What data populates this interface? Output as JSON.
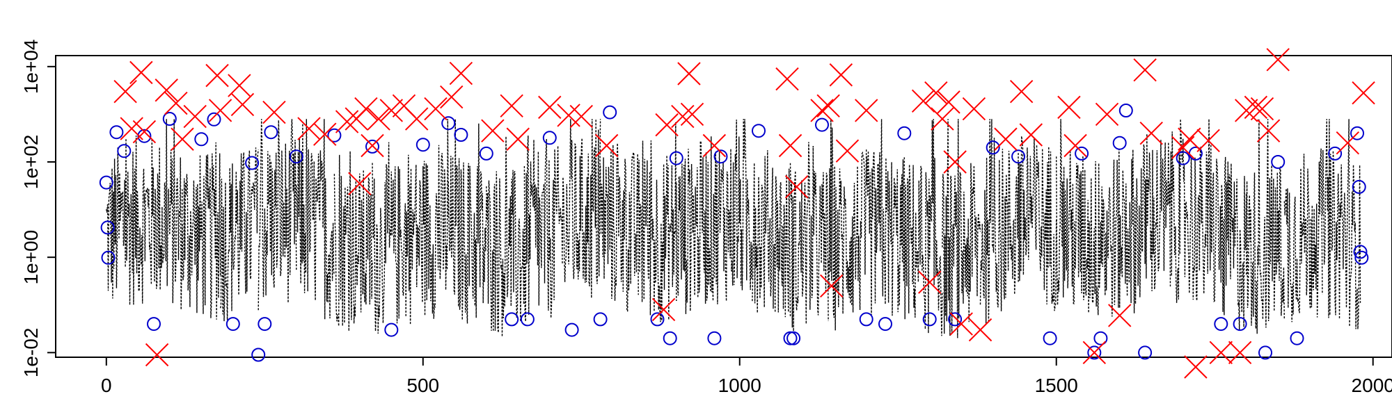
{
  "chart_data": {
    "type": "scatter",
    "title": "",
    "xlabel": "",
    "ylabel": "",
    "y_scale": "log10",
    "xlim": [
      -80,
      2030
    ],
    "ylim": [
      0.008,
      17000
    ],
    "x_ticks": [
      0,
      500,
      1000,
      1500,
      2000
    ],
    "x_tick_labels": [
      "0",
      "500",
      "1000",
      "1500",
      "2000"
    ],
    "y_ticks": [
      0.01,
      1,
      100,
      10000
    ],
    "y_tick_labels": [
      "1e-02",
      "1e+00",
      "1e+02",
      "1e+04"
    ],
    "grid": false,
    "legend": "none",
    "colors": {
      "line": "#000000",
      "circle": "#0000cc",
      "cross": "#ff0000"
    },
    "series": [
      {
        "style": "dotted-line",
        "description_values": "x = 0..1980, y between ~0.01 and ~800 (dense)"
      },
      {
        "style": "open-circle",
        "points": [
          [
            0,
            37
          ],
          [
            2,
            4.2
          ],
          [
            3,
            0.98
          ],
          [
            16,
            420
          ],
          [
            28,
            170
          ],
          [
            60,
            350
          ],
          [
            75,
            0.04
          ],
          [
            100,
            800
          ],
          [
            150,
            300
          ],
          [
            170,
            780
          ],
          [
            200,
            0.04
          ],
          [
            230,
            95
          ],
          [
            240,
            0.009
          ],
          [
            250,
            0.04
          ],
          [
            260,
            420
          ],
          [
            300,
            130
          ],
          [
            360,
            360
          ],
          [
            420,
            210
          ],
          [
            450,
            0.03
          ],
          [
            500,
            230
          ],
          [
            540,
            650
          ],
          [
            560,
            370
          ],
          [
            600,
            150
          ],
          [
            640,
            0.05
          ],
          [
            665,
            0.05
          ],
          [
            700,
            320
          ],
          [
            735,
            0.03
          ],
          [
            780,
            0.05
          ],
          [
            795,
            1100
          ],
          [
            870,
            0.05
          ],
          [
            890,
            0.02
          ],
          [
            900,
            120
          ],
          [
            960,
            0.02
          ],
          [
            970,
            130
          ],
          [
            1030,
            450
          ],
          [
            1080,
            0.02
          ],
          [
            1085,
            0.02
          ],
          [
            1130,
            600
          ],
          [
            1200,
            0.05
          ],
          [
            1230,
            0.04
          ],
          [
            1260,
            400
          ],
          [
            1300,
            0.05
          ],
          [
            1340,
            0.05
          ],
          [
            1400,
            200
          ],
          [
            1440,
            130
          ],
          [
            1490,
            0.02
          ],
          [
            1540,
            150
          ],
          [
            1560,
            0.01
          ],
          [
            1570,
            0.02
          ],
          [
            1600,
            250
          ],
          [
            1610,
            1200
          ],
          [
            1640,
            0.01
          ],
          [
            1700,
            120
          ],
          [
            1720,
            150
          ],
          [
            1760,
            0.04
          ],
          [
            1790,
            0.04
          ],
          [
            1830,
            0.01
          ],
          [
            1850,
            100
          ],
          [
            1880,
            0.02
          ],
          [
            1940,
            150
          ],
          [
            1975,
            400
          ],
          [
            1980,
            1.3
          ],
          [
            1982,
            0.98
          ],
          [
            1978,
            30
          ]
        ]
      },
      {
        "style": "x-cross",
        "points": [
          [
            30,
            3000
          ],
          [
            40,
            500
          ],
          [
            60,
            430
          ],
          [
            55,
            7500
          ],
          [
            80,
            0.009
          ],
          [
            95,
            3200
          ],
          [
            110,
            1700
          ],
          [
            120,
            300
          ],
          [
            140,
            900
          ],
          [
            175,
            6500
          ],
          [
            180,
            1200
          ],
          [
            210,
            4000
          ],
          [
            215,
            1600
          ],
          [
            265,
            1100
          ],
          [
            320,
            500
          ],
          [
            345,
            380
          ],
          [
            380,
            700
          ],
          [
            395,
            800
          ],
          [
            400,
            35
          ],
          [
            410,
            1300
          ],
          [
            420,
            220
          ],
          [
            430,
            800
          ],
          [
            450,
            1200
          ],
          [
            470,
            1500
          ],
          [
            490,
            800
          ],
          [
            520,
            1300
          ],
          [
            545,
            2300
          ],
          [
            560,
            7200
          ],
          [
            610,
            450
          ],
          [
            640,
            1500
          ],
          [
            650,
            300
          ],
          [
            700,
            1400
          ],
          [
            730,
            950
          ],
          [
            750,
            900
          ],
          [
            790,
            220
          ],
          [
            880,
            0.08
          ],
          [
            885,
            600
          ],
          [
            910,
            900
          ],
          [
            920,
            7100
          ],
          [
            925,
            1000
          ],
          [
            960,
            220
          ],
          [
            1075,
            5500
          ],
          [
            1080,
            220
          ],
          [
            1090,
            30
          ],
          [
            1130,
            1200
          ],
          [
            1140,
            1500
          ],
          [
            1145,
            0.25
          ],
          [
            1160,
            6700
          ],
          [
            1170,
            170
          ],
          [
            1200,
            1200
          ],
          [
            1290,
            1900
          ],
          [
            1300,
            0.3
          ],
          [
            1310,
            2800
          ],
          [
            1320,
            800
          ],
          [
            1330,
            1800
          ],
          [
            1340,
            100
          ],
          [
            1370,
            1300
          ],
          [
            1350,
            0.04
          ],
          [
            1380,
            0.03
          ],
          [
            1420,
            300
          ],
          [
            1445,
            3000
          ],
          [
            1460,
            370
          ],
          [
            1520,
            1400
          ],
          [
            1530,
            220
          ],
          [
            1560,
            0.01
          ],
          [
            1580,
            1000
          ],
          [
            1600,
            0.06
          ],
          [
            1640,
            8500
          ],
          [
            1650,
            400
          ],
          [
            1700,
            200
          ],
          [
            1710,
            300
          ],
          [
            1720,
            0.005
          ],
          [
            1740,
            280
          ],
          [
            1760,
            0.01
          ],
          [
            1790,
            0.01
          ],
          [
            1800,
            1200
          ],
          [
            1815,
            1400
          ],
          [
            1825,
            1300
          ],
          [
            1835,
            450
          ],
          [
            1850,
            14000
          ],
          [
            1960,
            250
          ],
          [
            1985,
            2800
          ]
        ]
      }
    ]
  }
}
